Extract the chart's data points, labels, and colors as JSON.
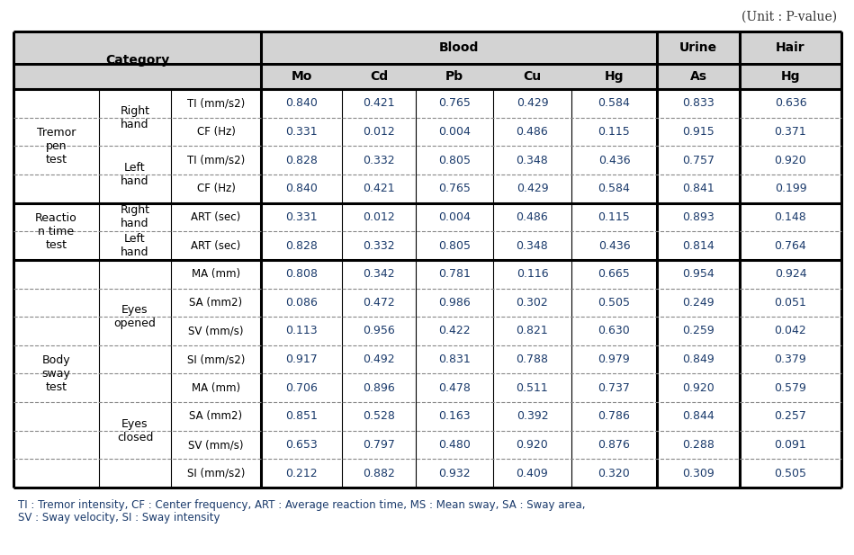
{
  "unit_label": "(Unit : P-value)",
  "rows": [
    {
      "group": "Tremor\npen\ntest",
      "sub1": "Right\nhand",
      "sub2": "TI (mm/s2)",
      "values": [
        "0.840",
        "0.421",
        "0.765",
        "0.429",
        "0.584",
        "0.833",
        "0.636"
      ]
    },
    {
      "group": "",
      "sub1": "",
      "sub2": "CF (Hz)",
      "values": [
        "0.331",
        "0.012",
        "0.004",
        "0.486",
        "0.115",
        "0.915",
        "0.371"
      ]
    },
    {
      "group": "",
      "sub1": "Left\nhand",
      "sub2": "TI (mm/s2)",
      "values": [
        "0.828",
        "0.332",
        "0.805",
        "0.348",
        "0.436",
        "0.757",
        "0.920"
      ]
    },
    {
      "group": "",
      "sub1": "",
      "sub2": "CF (Hz)",
      "values": [
        "0.840",
        "0.421",
        "0.765",
        "0.429",
        "0.584",
        "0.841",
        "0.199"
      ]
    },
    {
      "group": "Reactio\nn time\ntest",
      "sub1": "Right\nhand",
      "sub2": "ART (sec)",
      "values": [
        "0.331",
        "0.012",
        "0.004",
        "0.486",
        "0.115",
        "0.893",
        "0.148"
      ]
    },
    {
      "group": "",
      "sub1": "Left\nhand",
      "sub2": "ART (sec)",
      "values": [
        "0.828",
        "0.332",
        "0.805",
        "0.348",
        "0.436",
        "0.814",
        "0.764"
      ]
    },
    {
      "group": "Body\nsway\ntest",
      "sub1": "Eyes\nopened",
      "sub2": "MA (mm)",
      "values": [
        "0.808",
        "0.342",
        "0.781",
        "0.116",
        "0.665",
        "0.954",
        "0.924"
      ]
    },
    {
      "group": "",
      "sub1": "",
      "sub2": "SA (mm2)",
      "values": [
        "0.086",
        "0.472",
        "0.986",
        "0.302",
        "0.505",
        "0.249",
        "0.051"
      ]
    },
    {
      "group": "",
      "sub1": "",
      "sub2": "SV (mm/s)",
      "values": [
        "0.113",
        "0.956",
        "0.422",
        "0.821",
        "0.630",
        "0.259",
        "0.042"
      ]
    },
    {
      "group": "",
      "sub1": "",
      "sub2": "SI (mm/s2)",
      "values": [
        "0.917",
        "0.492",
        "0.831",
        "0.788",
        "0.979",
        "0.849",
        "0.379"
      ]
    },
    {
      "group": "",
      "sub1": "Eyes\nclosed",
      "sub2": "MA (mm)",
      "values": [
        "0.706",
        "0.896",
        "0.478",
        "0.511",
        "0.737",
        "0.920",
        "0.579"
      ]
    },
    {
      "group": "",
      "sub1": "",
      "sub2": "SA (mm2)",
      "values": [
        "0.851",
        "0.528",
        "0.163",
        "0.392",
        "0.786",
        "0.844",
        "0.257"
      ]
    },
    {
      "group": "",
      "sub1": "",
      "sub2": "SV (mm/s)",
      "values": [
        "0.653",
        "0.797",
        "0.480",
        "0.920",
        "0.876",
        "0.288",
        "0.091"
      ]
    },
    {
      "group": "",
      "sub1": "",
      "sub2": "SI (mm/s2)",
      "values": [
        "0.212",
        "0.882",
        "0.932",
        "0.409",
        "0.320",
        "0.309",
        "0.505"
      ]
    }
  ],
  "footnote_line1": "TI : Tremor intensity, CF : Center frequency, ART : Average reaction time, MS : Mean sway, SA : Sway area,",
  "footnote_line2": "SV : Sway velocity, SI : Sway intensity",
  "header_bg": "#d3d3d3",
  "text_color_header": "#000000",
  "text_color_data": "#1a3a6b",
  "text_color_category": "#000000",
  "text_color_footnote": "#1a3a6b",
  "font_size_header": 10,
  "font_size_data": 9,
  "font_size_unit": 10,
  "font_size_footnote": 8.5,
  "group_spans": [
    [
      0,
      3,
      "Tremor\npen\ntest"
    ],
    [
      4,
      5,
      "Reactio\nn time\ntest"
    ],
    [
      6,
      13,
      "Body\nsway\ntest"
    ]
  ],
  "sub1_spans": [
    [
      0,
      1,
      "Right\nhand"
    ],
    [
      2,
      3,
      "Left\nhand"
    ],
    [
      4,
      4,
      "Right\nhand"
    ],
    [
      5,
      5,
      "Left\nhand"
    ],
    [
      6,
      9,
      "Eyes\nopened"
    ],
    [
      10,
      13,
      "Eyes\nclosed"
    ]
  ],
  "thick_after_rows": [
    3,
    5
  ],
  "dashed_after_rows": [
    0,
    1,
    2,
    4,
    6,
    7,
    8,
    9,
    10,
    11,
    12
  ]
}
